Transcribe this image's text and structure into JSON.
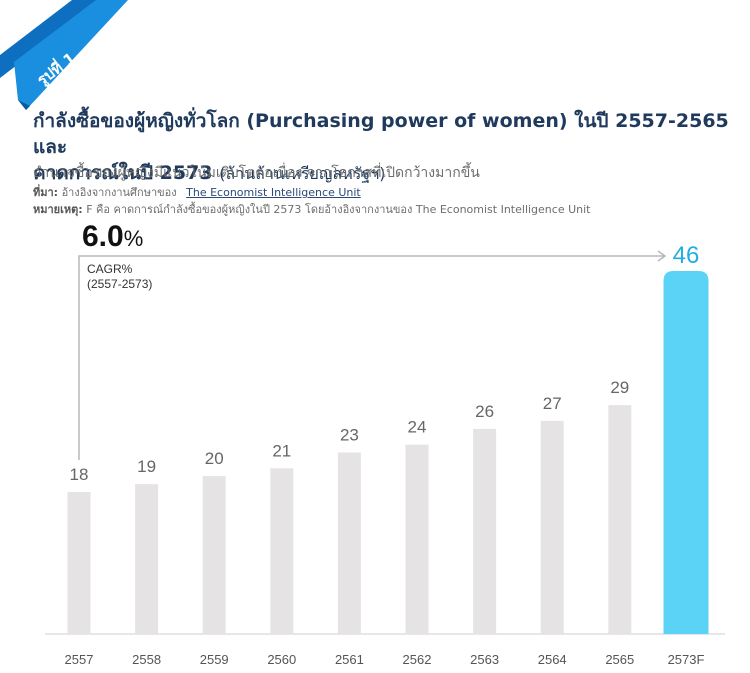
{
  "figure": {
    "badge": "รูปที่ 1"
  },
  "header": {
    "title_line1": "กำลังซื้อของผู้หญิงทั่วโลก (Purchasing power of women) ในปี 2557-2565 และ",
    "title_line2": "คาดการณ์ในปี 2573",
    "title_unit": "(ล้านล้านเหรียญสหรัฐฯ)",
    "subtitle": "อำนาจซื้อของผู้หญิงมีแนวโน้มเติบโตต่อเนื่อง จากโอกาสที่เปิดกว้างมากขึ้น",
    "source_label": "ที่มา:",
    "source_text": "อ้างอิงจากงานศึกษาของ",
    "source_link": "The Economist Intelligence Unit",
    "note_label": "หมายเหตุ:",
    "note_text": "F คือ คาดการณ์กำลังซื้อของผู้หญิงในปี 2573 โดยอ้างอิงจากงานของ  The Economist Intelligence Unit"
  },
  "cagr": {
    "value": "6.0",
    "unit": "%",
    "label_line1": "CAGR%",
    "label_line2": "(2557-2573)"
  },
  "colors": {
    "bar": "#e6e3e4",
    "forecast_bar": "#5bd3f7",
    "forecast_label": "#22aee0",
    "title": "#1f3a5c",
    "ribbon": "#1a8fe0"
  },
  "chart_data": {
    "type": "bar",
    "categories": [
      "2557",
      "2558",
      "2559",
      "2560",
      "2561",
      "2562",
      "2563",
      "2564",
      "2565",
      "2573F"
    ],
    "values": [
      18,
      19,
      20,
      21,
      23,
      24,
      26,
      27,
      29,
      46
    ],
    "value_labels": [
      "18",
      "19",
      "20",
      "21",
      "23",
      "24",
      "26",
      "27",
      "29",
      "46"
    ],
    "highlight_category": "2573F",
    "ylim": [
      0,
      46
    ],
    "grid": false,
    "legend": "none",
    "annotation": "CAGR% (2557-2573) 6.0%"
  }
}
